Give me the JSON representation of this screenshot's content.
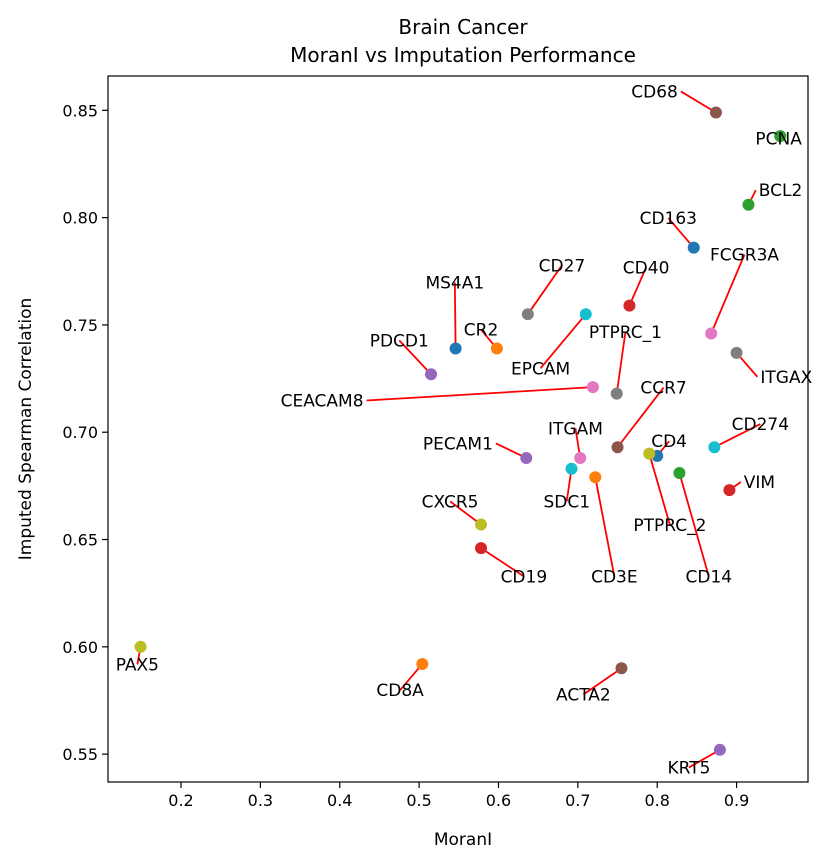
{
  "chart_data": {
    "type": "scatter",
    "title": "Brain Cancer",
    "subtitle": "MoranI vs Imputation Performance",
    "xlabel": "MoranI",
    "ylabel": "Imputed Spearman Correlation",
    "xlim": [
      0.108,
      0.99
    ],
    "ylim": [
      0.537,
      0.866
    ],
    "xticks": [
      0.2,
      0.3,
      0.4,
      0.5,
      0.6,
      0.7,
      0.8,
      0.9
    ],
    "xtick_labels": [
      "0.2",
      "0.3",
      "0.4",
      "0.5",
      "0.6",
      "0.7",
      "0.8",
      "0.9"
    ],
    "yticks": [
      0.55,
      0.6,
      0.65,
      0.7,
      0.75,
      0.8,
      0.85
    ],
    "ytick_labels": [
      "0.55",
      "0.60",
      "0.65",
      "0.70",
      "0.75",
      "0.80",
      "0.85"
    ],
    "grid": false,
    "leader_color": "#ff0000",
    "points": [
      {
        "label": "CD68",
        "x": 0.874,
        "y": 0.849,
        "color": "#8c564b",
        "lx": 0.826,
        "ly": 0.856,
        "anchor": "end"
      },
      {
        "label": "PCNA",
        "x": 0.955,
        "y": 0.838,
        "color": "#2ca02c",
        "lx": 0.953,
        "ly": 0.834,
        "anchor": "middle"
      },
      {
        "label": "BCL2",
        "x": 0.915,
        "y": 0.806,
        "color": "#2ca02c",
        "lx": 0.928,
        "ly": 0.81,
        "anchor": "start"
      },
      {
        "label": "CD163",
        "x": 0.846,
        "y": 0.786,
        "color": "#1f77b4",
        "lx": 0.814,
        "ly": 0.797,
        "anchor": "middle"
      },
      {
        "label": "CD40",
        "x": 0.765,
        "y": 0.759,
        "color": "#d62728",
        "lx": 0.786,
        "ly": 0.774,
        "anchor": "middle"
      },
      {
        "label": "FCGR3A",
        "x": 0.868,
        "y": 0.746,
        "color": "#e377c2",
        "lx": 0.91,
        "ly": 0.78,
        "anchor": "middle"
      },
      {
        "label": "CD27",
        "x": 0.637,
        "y": 0.755,
        "color": "#7f7f7f",
        "lx": 0.68,
        "ly": 0.775,
        "anchor": "middle"
      },
      {
        "label": "EPCAM",
        "x": 0.71,
        "y": 0.755,
        "color": "#17becf",
        "lx": 0.653,
        "ly": 0.727,
        "anchor": "middle"
      },
      {
        "label": "MS4A1",
        "x": 0.546,
        "y": 0.739,
        "color": "#1f77b4",
        "lx": 0.545,
        "ly": 0.767,
        "anchor": "middle"
      },
      {
        "label": "CR2",
        "x": 0.598,
        "y": 0.739,
        "color": "#ff7f0e",
        "lx": 0.578,
        "ly": 0.745,
        "anchor": "middle"
      },
      {
        "label": "PTPRC_1",
        "x": 0.749,
        "y": 0.718,
        "color": "#7f7f7f",
        "lx": 0.76,
        "ly": 0.744,
        "anchor": "middle"
      },
      {
        "label": "ITGAX",
        "x": 0.9,
        "y": 0.737,
        "color": "#7f7f7f",
        "lx": 0.93,
        "ly": 0.723,
        "anchor": "start"
      },
      {
        "label": "PDCD1",
        "x": 0.515,
        "y": 0.727,
        "color": "#9467bd",
        "lx": 0.475,
        "ly": 0.74,
        "anchor": "middle"
      },
      {
        "label": "CEACAM8",
        "x": 0.719,
        "y": 0.721,
        "color": "#e377c2",
        "lx": 0.43,
        "ly": 0.712,
        "anchor": "end"
      },
      {
        "label": "CCR7",
        "x": 0.75,
        "y": 0.693,
        "color": "#8c564b",
        "lx": 0.808,
        "ly": 0.718,
        "anchor": "middle"
      },
      {
        "label": "ITGAM",
        "x": 0.703,
        "y": 0.688,
        "color": "#e377c2",
        "lx": 0.697,
        "ly": 0.699,
        "anchor": "middle"
      },
      {
        "label": "CD4",
        "x": 0.8,
        "y": 0.689,
        "color": "#1f77b4",
        "lx": 0.815,
        "ly": 0.693,
        "anchor": "middle"
      },
      {
        "label": "CD274",
        "x": 0.872,
        "y": 0.693,
        "color": "#17becf",
        "lx": 0.93,
        "ly": 0.701,
        "anchor": "middle"
      },
      {
        "label": "PECAM1",
        "x": 0.635,
        "y": 0.688,
        "color": "#9467bd",
        "lx": 0.593,
        "ly": 0.692,
        "anchor": "end"
      },
      {
        "label": "SDC1",
        "x": 0.692,
        "y": 0.683,
        "color": "#17becf",
        "lx": 0.686,
        "ly": 0.665,
        "anchor": "middle"
      },
      {
        "label": "CD14",
        "x": 0.828,
        "y": 0.681,
        "color": "#2ca02c",
        "lx": 0.865,
        "ly": 0.63,
        "anchor": "middle"
      },
      {
        "label": "VIM",
        "x": 0.891,
        "y": 0.673,
        "color": "#d62728",
        "lx": 0.909,
        "ly": 0.674,
        "anchor": "start"
      },
      {
        "label": "CD3E",
        "x": 0.722,
        "y": 0.679,
        "color": "#ff7f0e",
        "lx": 0.746,
        "ly": 0.63,
        "anchor": "middle"
      },
      {
        "label": "PTPRC_2",
        "x": 0.79,
        "y": 0.69,
        "color": "#bcbd22",
        "lx": 0.816,
        "ly": 0.654,
        "anchor": "middle"
      },
      {
        "label": "CXCR5",
        "x": 0.578,
        "y": 0.657,
        "color": "#bcbd22",
        "lx": 0.539,
        "ly": 0.665,
        "anchor": "middle"
      },
      {
        "label": "CD19",
        "x": 0.578,
        "y": 0.646,
        "color": "#d62728",
        "lx": 0.632,
        "ly": 0.63,
        "anchor": "middle"
      },
      {
        "label": "PAX5",
        "x": 0.149,
        "y": 0.6,
        "color": "#bcbd22",
        "lx": 0.145,
        "ly": 0.589,
        "anchor": "middle"
      },
      {
        "label": "CD8A",
        "x": 0.504,
        "y": 0.592,
        "color": "#ff7f0e",
        "lx": 0.476,
        "ly": 0.577,
        "anchor": "middle"
      },
      {
        "label": "ACTA2",
        "x": 0.755,
        "y": 0.59,
        "color": "#8c564b",
        "lx": 0.707,
        "ly": 0.575,
        "anchor": "middle"
      },
      {
        "label": "KRT5",
        "x": 0.879,
        "y": 0.552,
        "color": "#9467bd",
        "lx": 0.84,
        "ly": 0.541,
        "anchor": "middle"
      }
    ]
  }
}
